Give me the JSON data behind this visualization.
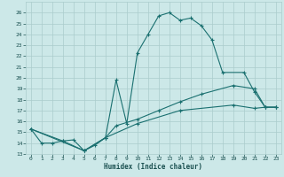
{
  "xlabel": "Humidex (Indice chaleur)",
  "bg_color": "#cce8e8",
  "grid_color": "#aacccc",
  "line_color": "#1a7070",
  "xlim": [
    -0.5,
    23.5
  ],
  "ylim": [
    13,
    27
  ],
  "xticks": [
    0,
    1,
    2,
    3,
    4,
    5,
    6,
    7,
    8,
    9,
    10,
    11,
    12,
    13,
    14,
    15,
    16,
    17,
    18,
    19,
    20,
    21,
    22,
    23
  ],
  "yticks": [
    13,
    14,
    15,
    16,
    17,
    18,
    19,
    20,
    21,
    22,
    23,
    24,
    25,
    26
  ],
  "series1_x": [
    0,
    1,
    2,
    3,
    4,
    5,
    6,
    7,
    8,
    9,
    10,
    11,
    12,
    13,
    14,
    15,
    16,
    17,
    18,
    20,
    21,
    22,
    23
  ],
  "series1_y": [
    15.3,
    14.0,
    14.0,
    14.2,
    14.3,
    13.3,
    13.8,
    14.5,
    19.8,
    15.8,
    22.3,
    24.0,
    25.7,
    26.0,
    25.3,
    25.5,
    24.8,
    23.5,
    20.5,
    20.5,
    18.7,
    17.3,
    17.3
  ],
  "series2_x": [
    0,
    3,
    5,
    7,
    8,
    10,
    12,
    14,
    16,
    19,
    21,
    22,
    23
  ],
  "series2_y": [
    15.3,
    14.2,
    13.3,
    14.5,
    15.6,
    16.2,
    17.0,
    17.8,
    18.5,
    19.3,
    19.0,
    17.3,
    17.3
  ],
  "series3_x": [
    0,
    5,
    7,
    10,
    14,
    19,
    21,
    22,
    23
  ],
  "series3_y": [
    15.3,
    13.3,
    14.5,
    15.8,
    17.0,
    17.5,
    17.2,
    17.3,
    17.3
  ]
}
